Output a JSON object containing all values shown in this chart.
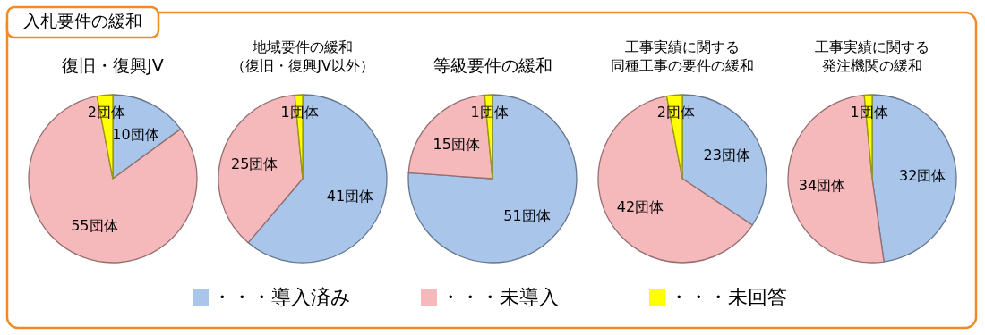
{
  "chart_data": [
    {
      "type": "pie",
      "title": "復旧・復興JV",
      "annotations": [
        "入札要件の緩和"
      ],
      "categories": [
        "・・・導入済み",
        "・・・未導入",
        "・・・未回答"
      ],
      "values": [
        10,
        55,
        2
      ],
      "colors": [
        "#a9c5ea",
        "#f6b9bb",
        "#ffff00"
      ],
      "value_labels": [
        "10団体",
        "55団体",
        "2団体"
      ],
      "legend": "bottom"
    },
    {
      "type": "pie",
      "title": "地域要件の緩和（復旧・復興JV以外）",
      "values": [
        41,
        25,
        1
      ],
      "colors": [
        "#a9c5ea",
        "#f6b9bb",
        "#ffff00"
      ],
      "value_labels": [
        "41団体",
        "25団体",
        "1団体"
      ]
    },
    {
      "type": "pie",
      "title": "等級要件の緩和",
      "values": [
        51,
        15,
        1
      ],
      "colors": [
        "#a9c5ea",
        "#f6b9bb",
        "#ffff00"
      ],
      "value_labels": [
        "51団体",
        "15団体",
        "1団体"
      ]
    },
    {
      "type": "pie",
      "title": "工事実績に関する同種工事の要件の緩和",
      "values": [
        23,
        42,
        2
      ],
      "colors": [
        "#a9c5ea",
        "#f6b9bb",
        "#ffff00"
      ],
      "value_labels": [
        "23団体",
        "42団体",
        "2団体"
      ]
    },
    {
      "type": "pie",
      "title": "工事実績に関する発注機関の緩和",
      "values": [
        32,
        34,
        1
      ],
      "colors": [
        "#a9c5ea",
        "#f6b9bb",
        "#ffff00"
      ],
      "value_labels": [
        "32団体",
        "34団体",
        "1団体"
      ]
    }
  ]
}
